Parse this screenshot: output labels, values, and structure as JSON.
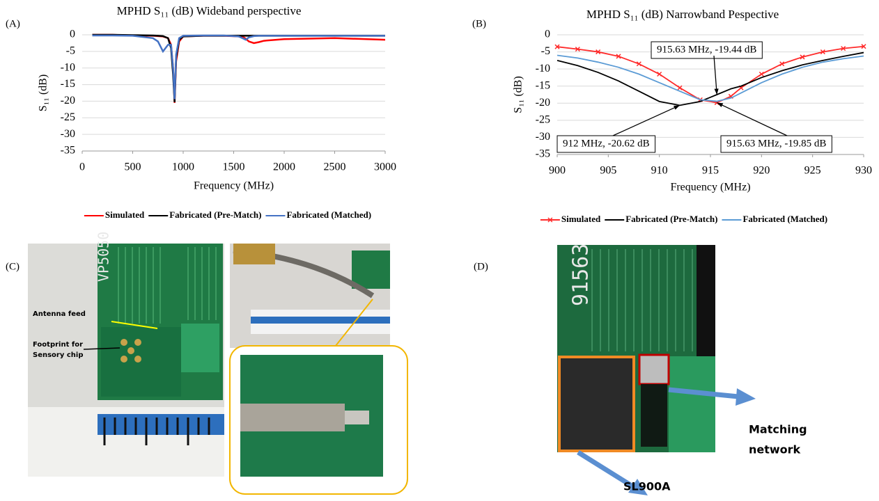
{
  "panels": [
    "(A)",
    "(B)",
    "(C)",
    "(D)"
  ],
  "chart_data": [
    {
      "type": "line",
      "title": "MPHD S₁₁ (dB) Wideband perspective",
      "x_label": "Frequency (MHz)",
      "y_label": "S₁₁ (dB)",
      "x": [
        100,
        300,
        500,
        700,
        750,
        800,
        850,
        880,
        900,
        915,
        930,
        960,
        1000,
        1200,
        1400,
        1550,
        1600,
        1620,
        1650,
        1700,
        1750,
        1800,
        2000,
        2500,
        3000
      ],
      "series": [
        {
          "name": "Simulated",
          "color": "#ff0000",
          "values": [
            0,
            0,
            -0.2,
            -0.3,
            -0.4,
            -0.5,
            -1,
            -3,
            -10,
            -20.5,
            -8,
            -2,
            -0.5,
            -0.3,
            -0.3,
            -0.5,
            -0.8,
            -1.2,
            -2,
            -2.5,
            -2.2,
            -1.8,
            -1.3,
            -1,
            -1.5
          ]
        },
        {
          "name": "Fabricated (Pre-Match)",
          "color": "#000000",
          "values": [
            0,
            0,
            -0.1,
            -0.2,
            -0.3,
            -0.4,
            -1,
            -4,
            -12,
            -20.3,
            -7,
            -1.5,
            -0.5,
            -0.3,
            -0.3,
            -0.3,
            -0.3,
            -0.3,
            -0.3,
            -0.3,
            -0.3,
            -0.3,
            -0.3,
            -0.3,
            -0.3
          ]
        },
        {
          "name": "Fabricated (Matched)",
          "color": "#4472c4",
          "values": [
            -0.2,
            -0.2,
            -0.3,
            -1,
            -2,
            -5,
            -3,
            -3,
            -10,
            -19.4,
            -6,
            -1,
            -0.3,
            -0.2,
            -0.2,
            -0.5,
            -1.2,
            -1.5,
            -0.8,
            -0.4,
            -0.3,
            -0.3,
            -0.3,
            -0.3,
            -0.3
          ]
        }
      ],
      "xlim": [
        0,
        3000
      ],
      "xticks": [
        0,
        500,
        1000,
        1500,
        2000,
        2500,
        3000
      ],
      "ylim": [
        -35,
        0
      ],
      "yticks": [
        0,
        -5,
        -10,
        -15,
        -20,
        -25,
        -30,
        -35
      ],
      "grid": true,
      "legend": "bottom"
    },
    {
      "type": "line",
      "title": "MPHD S₁₁ (dB) Narrowband Pespective",
      "x_label": "Frequency (MHz)",
      "y_label": "S₁₁ (dB)",
      "x": [
        900,
        902,
        904,
        906,
        908,
        910,
        912,
        914,
        915.63,
        917,
        918,
        920,
        922,
        924,
        926,
        928,
        930
      ],
      "series": [
        {
          "name": "Simulated",
          "color": "#ff2a2a",
          "marker": "x",
          "values": [
            -3.5,
            -4.2,
            -5,
            -6.3,
            -8.5,
            -11.5,
            -15.5,
            -19,
            -19.85,
            -18,
            -15.5,
            -11.5,
            -8.5,
            -6.5,
            -5,
            -4,
            -3.4
          ]
        },
        {
          "name": "Fabricated (Pre-Match)",
          "color": "#000000",
          "values": [
            -7.5,
            -9,
            -11,
            -13.5,
            -16.5,
            -19.5,
            -20.62,
            -19.5,
            -17.5,
            -15.8,
            -15,
            -12.5,
            -10.5,
            -8.8,
            -7.5,
            -6.3,
            -5.2
          ]
        },
        {
          "name": "Fabricated (Matched)",
          "color": "#5b9bd5",
          "values": [
            -6,
            -6.8,
            -8,
            -9.5,
            -11.5,
            -14,
            -16.5,
            -19,
            -19.44,
            -18.5,
            -17,
            -14,
            -11.5,
            -9.5,
            -8,
            -7,
            -6.2
          ]
        }
      ],
      "xlim": [
        900,
        930
      ],
      "xticks": [
        900,
        905,
        910,
        915,
        920,
        925,
        930
      ],
      "ylim": [
        -35,
        0
      ],
      "yticks": [
        0,
        -5,
        -10,
        -15,
        -20,
        -25,
        -30,
        -35
      ],
      "grid": true,
      "legend": "bottom",
      "annotations": [
        "915.63 MHz, -19.44 dB",
        "912 MHz, -20.62 dB",
        "915.63 MHz, -19.85 dB"
      ]
    }
  ],
  "photos": {
    "antenna_feed": "Antenna feed",
    "footprint": [
      "Footprint for",
      "Sensory chip"
    ],
    "board_c": "VP5050",
    "board_d": "91563",
    "matching": [
      "Matching",
      "network"
    ],
    "chip": "SL900A"
  }
}
